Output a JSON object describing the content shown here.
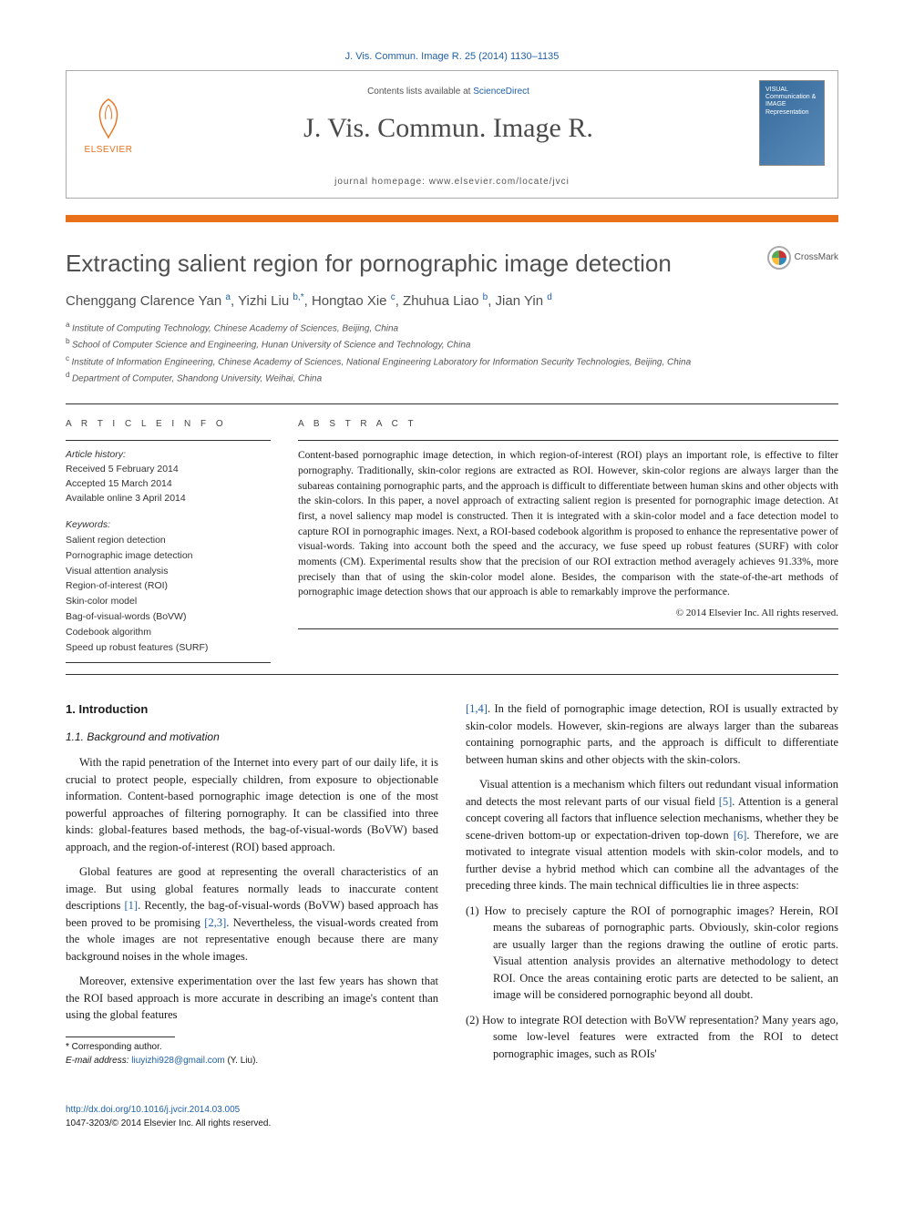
{
  "header": {
    "citation": "J. Vis. Commun. Image R. 25 (2014) 1130–1135",
    "contents_prefix": "Contents lists available at ",
    "contents_link": "ScienceDirect",
    "journal_name": "J. Vis. Commun. Image R.",
    "homepage_label": "journal homepage: www.elsevier.com/locate/jvci",
    "publisher": "ELSEVIER",
    "cover_line1": "VISUAL",
    "cover_line2": "Communication &",
    "cover_line3": "IMAGE",
    "cover_line4": "Representation"
  },
  "crossmark": "CrossMark",
  "title": "Extracting salient region for pornographic image detection",
  "authors_html": "Chenggang Clarence Yan|a|, Yizhi Liu|b,*|, Hongtao Xie|c|, Zhuhua Liao|b|, Jian Yin|d",
  "authors": [
    {
      "name": "Chenggang Clarence Yan",
      "sup": "a"
    },
    {
      "name": "Yizhi Liu",
      "sup": "b,",
      "star": true
    },
    {
      "name": "Hongtao Xie",
      "sup": "c"
    },
    {
      "name": "Zhuhua Liao",
      "sup": "b"
    },
    {
      "name": "Jian Yin",
      "sup": "d"
    }
  ],
  "affiliations": [
    "Institute of Computing Technology, Chinese Academy of Sciences, Beijing, China",
    "School of Computer Science and Engineering, Hunan University of Science and Technology, China",
    "Institute of Information Engineering, Chinese Academy of Sciences, National Engineering Laboratory for Information Security Technologies, Beijing, China",
    "Department of Computer, Shandong University, Weihai, China"
  ],
  "aff_markers": [
    "a",
    "b",
    "c",
    "d"
  ],
  "article_info": {
    "label": "A R T I C L E   I N F O",
    "history_head": "Article history:",
    "history": [
      "Received 5 February 2014",
      "Accepted 15 March 2014",
      "Available online 3 April 2014"
    ],
    "keywords_head": "Keywords:",
    "keywords": [
      "Salient region detection",
      "Pornographic image detection",
      "Visual attention analysis",
      "Region-of-interest (ROI)",
      "Skin-color model",
      "Bag-of-visual-words (BoVW)",
      "Codebook algorithm",
      "Speed up robust features (SURF)"
    ]
  },
  "abstract": {
    "label": "A B S T R A C T",
    "text": "Content-based pornographic image detection, in which region-of-interest (ROI) plays an important role, is effective to filter pornography. Traditionally, skin-color regions are extracted as ROI. However, skin-color regions are always larger than the subareas containing pornographic parts, and the approach is difficult to differentiate between human skins and other objects with the skin-colors. In this paper, a novel approach of extracting salient region is presented for pornographic image detection. At first, a novel saliency map model is constructed. Then it is integrated with a skin-color model and a face detection model to capture ROI in pornographic images. Next, a ROI-based codebook algorithm is proposed to enhance the representative power of visual-words. Taking into account both the speed and the accuracy, we fuse speed up robust features (SURF) with color moments (CM). Experimental results show that the precision of our ROI extraction method averagely achieves 91.33%, more precisely than that of using the skin-color model alone. Besides, the comparison with the state-of-the-art methods of pornographic image detection shows that our approach is able to remarkably improve the performance.",
    "copyright": "© 2014 Elsevier Inc. All rights reserved."
  },
  "body": {
    "sec1": "1. Introduction",
    "sec11": "1.1. Background and motivation",
    "p1": "With the rapid penetration of the Internet into every part of our daily life, it is crucial to protect people, especially children, from exposure to objectionable information. Content-based pornographic image detection is one of the most powerful approaches of filtering pornography. It can be classified into three kinds: global-features based methods, the bag-of-visual-words (BoVW) based approach, and the region-of-interest (ROI) based approach.",
    "p2a": "Global features are good at representing the overall characteristics of an image. But using global features normally leads to inaccurate content descriptions ",
    "p2r1": "[1]",
    "p2b": ". Recently, the bag-of-visual-words (BoVW) based approach has been proved to be promising ",
    "p2r2": "[2,3]",
    "p2c": ". Nevertheless, the visual-words created from the whole images are not representative enough because there are many background noises in the whole images.",
    "p3": "Moreover, extensive experimentation over the last few years has shown that the ROI based approach is more accurate in describing an image's content than using the global features ",
    "p4r1": "[1,4]",
    "p4a": ". In the field of pornographic image detection, ROI is usually extracted by skin-color models. However, skin-regions are always larger than the subareas containing pornographic parts, and the approach is difficult to differentiate between human skins and other objects with the skin-colors.",
    "p5a": "Visual attention is a mechanism which filters out redundant visual information and detects the most relevant parts of our visual field ",
    "p5r1": "[5]",
    "p5b": ". Attention is a general concept covering all factors that influence selection mechanisms, whether they be scene-driven bottom-up or expectation-driven top-down ",
    "p5r2": "[6]",
    "p5c": ". Therefore, we are motivated to integrate visual attention models with skin-color models, and to further devise a hybrid method which can combine all the advantages of the preceding three kinds. The main technical difficulties lie in three aspects:",
    "li1": "(1) How to precisely capture the ROI of pornographic images? Herein, ROI means the subareas of pornographic parts. Obviously, skin-color regions are usually larger than the regions drawing the outline of erotic parts. Visual attention analysis provides an alternative methodology to detect ROI. Once the areas containing erotic parts are detected to be salient, an image will be considered pornographic beyond all doubt.",
    "li2": "(2) How to integrate ROI detection with BoVW representation? Many years ago, some low-level features were extracted from the ROI to detect pornographic images, such as ROIs'"
  },
  "footer": {
    "corr": "Corresponding author.",
    "email_label": "E-mail address:",
    "email": "liuyizhi928@gmail.com",
    "email_name": "(Y. Liu).",
    "doi": "http://dx.doi.org/10.1016/j.jvcir.2014.03.005",
    "issn": "1047-3203/© 2014 Elsevier Inc. All rights reserved."
  }
}
